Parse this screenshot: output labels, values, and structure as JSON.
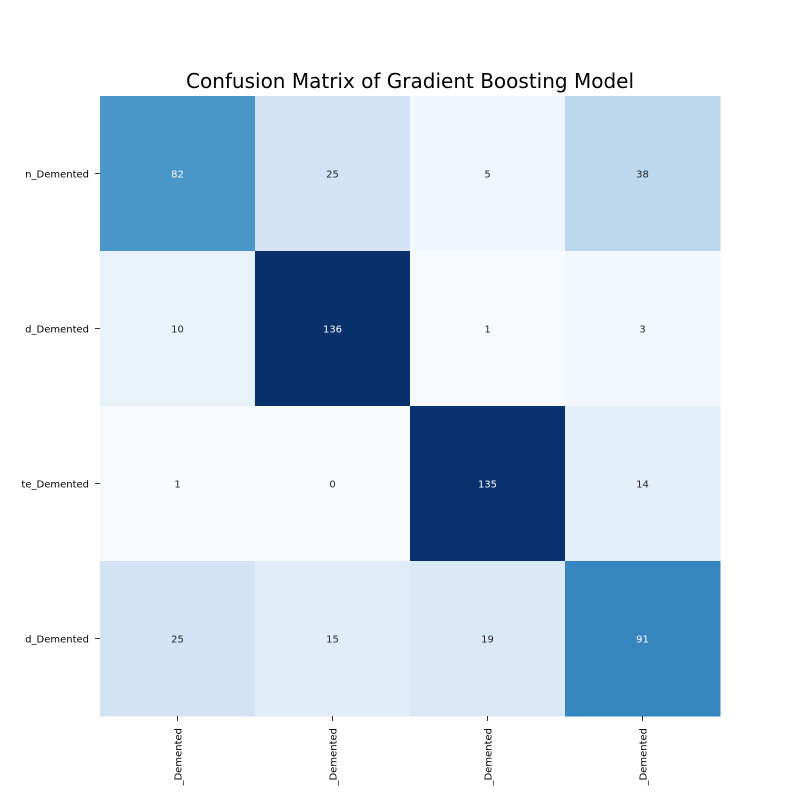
{
  "chart_data": {
    "type": "heatmap",
    "title": "Confusion Matrix of Gradient Boosting Model",
    "xlabel": "",
    "ylabel": "",
    "row_labels_visible": [
      "n_Demented",
      "d_Demented",
      "te_Demented",
      "d_Demented"
    ],
    "col_labels_visible": [
      "_Demented",
      "_Demented",
      "_Demented",
      "_Demented"
    ],
    "matrix": [
      [
        82,
        25,
        5,
        38
      ],
      [
        10,
        136,
        1,
        3
      ],
      [
        1,
        0,
        135,
        14
      ],
      [
        25,
        15,
        19,
        91
      ]
    ],
    "value_range": [
      0,
      136
    ],
    "colormap": "Blues",
    "colorbar": false,
    "colors": {
      "text_dark": "#262626",
      "text_light": "#ffffff"
    }
  }
}
